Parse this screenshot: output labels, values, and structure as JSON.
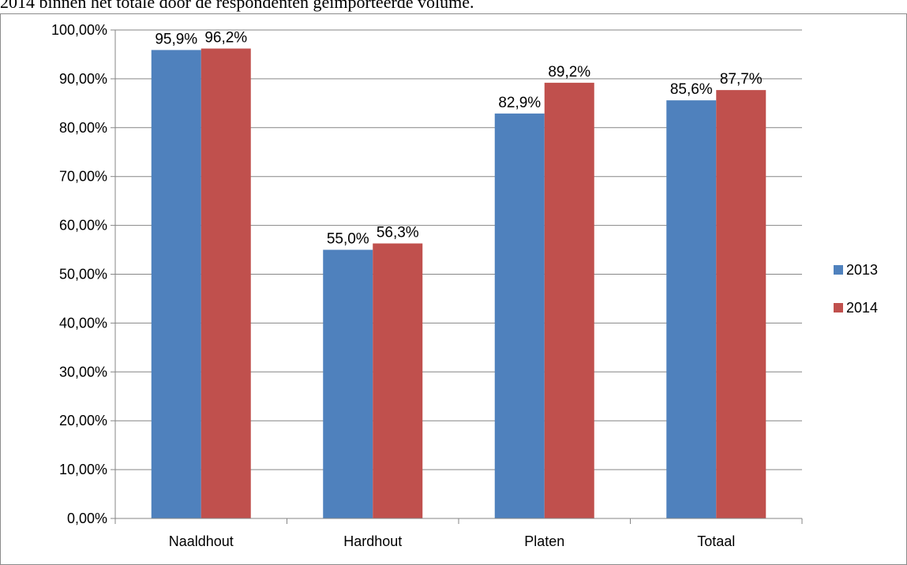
{
  "document": {
    "caption_fragment": "2014 binnen het totale door de respondenten geïmporteerde volume."
  },
  "chart_data": {
    "type": "bar",
    "title": "",
    "xlabel": "",
    "ylabel": "",
    "categories": [
      "Naaldhout",
      "Hardhout",
      "Platen",
      "Totaal"
    ],
    "series": [
      {
        "name": "2013",
        "values": [
          95.9,
          55.0,
          82.9,
          85.6
        ],
        "labels": [
          "95,9%",
          "55,0%",
          "82,9%",
          "85,6%"
        ],
        "color": "#4f81bd"
      },
      {
        "name": "2014",
        "values": [
          96.2,
          56.3,
          89.2,
          87.7
        ],
        "labels": [
          "96,2%",
          "56,3%",
          "89,2%",
          "87,7%"
        ],
        "color": "#c0504d"
      }
    ],
    "ylim": [
      0,
      100
    ],
    "yticks": [
      0,
      10,
      20,
      30,
      40,
      50,
      60,
      70,
      80,
      90,
      100
    ],
    "ytick_labels": [
      "0,00%",
      "10,00%",
      "20,00%",
      "30,00%",
      "40,00%",
      "50,00%",
      "60,00%",
      "70,00%",
      "80,00%",
      "90,00%",
      "100,00%"
    ],
    "grid": true,
    "legend": "right"
  }
}
